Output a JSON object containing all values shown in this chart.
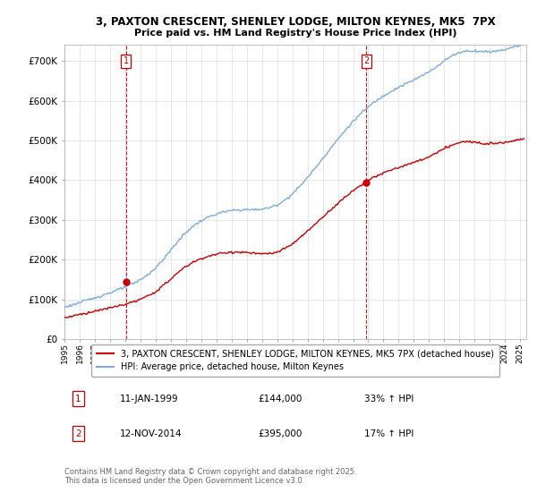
{
  "title1": "3, PAXTON CRESCENT, SHENLEY LODGE, MILTON KEYNES, MK5  7PX",
  "title2": "Price paid vs. HM Land Registry's House Price Index (HPI)",
  "yticks": [
    0,
    100000,
    200000,
    300000,
    400000,
    500000,
    600000,
    700000
  ],
  "ytick_labels": [
    "£0",
    "£100K",
    "£200K",
    "£300K",
    "£400K",
    "£500K",
    "£600K",
    "£700K"
  ],
  "ylim": [
    0,
    740000
  ],
  "sale1_date": 1999.04,
  "sale1_price": 144000,
  "sale1_label": "1",
  "sale2_date": 2014.87,
  "sale2_price": 395000,
  "sale2_label": "2",
  "legend_line1": "3, PAXTON CRESCENT, SHENLEY LODGE, MILTON KEYNES, MK5 7PX (detached house)",
  "legend_line2": "HPI: Average price, detached house, Milton Keynes",
  "footer": "Contains HM Land Registry data © Crown copyright and database right 2025.\nThis data is licensed under the Open Government Licence v3.0.",
  "red_color": "#cc0000",
  "blue_color": "#7aaddb",
  "background_color": "#ffffff",
  "grid_color": "#dddddd",
  "ann1_date": "11-JAN-1999",
  "ann1_price": "£144,000",
  "ann1_pct": "33% ↑ HPI",
  "ann2_date": "12-NOV-2014",
  "ann2_price": "£395,000",
  "ann2_pct": "17% ↑ HPI"
}
